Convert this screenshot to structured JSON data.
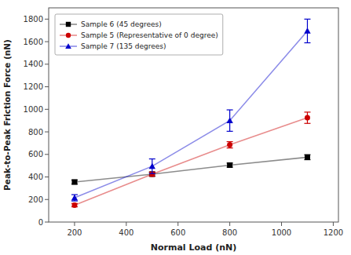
{
  "chart_data": {
    "type": "line",
    "xlabel": "Normal Load (nN)",
    "ylabel": "Peak-to-Peak Friction Force (nN)",
    "x": [
      200,
      500,
      800,
      1100
    ],
    "series": [
      {
        "name": "Sample 6 (45 degrees)",
        "color": "#000000",
        "marker": "square",
        "values": [
          355,
          425,
          505,
          575
        ],
        "errors": [
          18,
          18,
          18,
          22
        ]
      },
      {
        "name": "Sample 5 (Representative of 0 degree)",
        "color": "#cc0000",
        "marker": "circle",
        "values": [
          150,
          425,
          685,
          925
        ],
        "errors": [
          15,
          18,
          28,
          50
        ]
      },
      {
        "name": "Sample 7 (135 degrees)",
        "color": "#0000cc",
        "marker": "triangle",
        "values": [
          215,
          495,
          900,
          1695
        ],
        "errors": [
          28,
          65,
          95,
          105
        ]
      }
    ],
    "xlim": [
      100,
      1220
    ],
    "ylim": [
      0,
      1900
    ],
    "xticks": [
      200,
      400,
      600,
      800,
      1000,
      1200
    ],
    "yticks": [
      0,
      200,
      400,
      600,
      800,
      1000,
      1200,
      1400,
      1600,
      1800
    ],
    "grid": false,
    "legend": "upper left"
  }
}
